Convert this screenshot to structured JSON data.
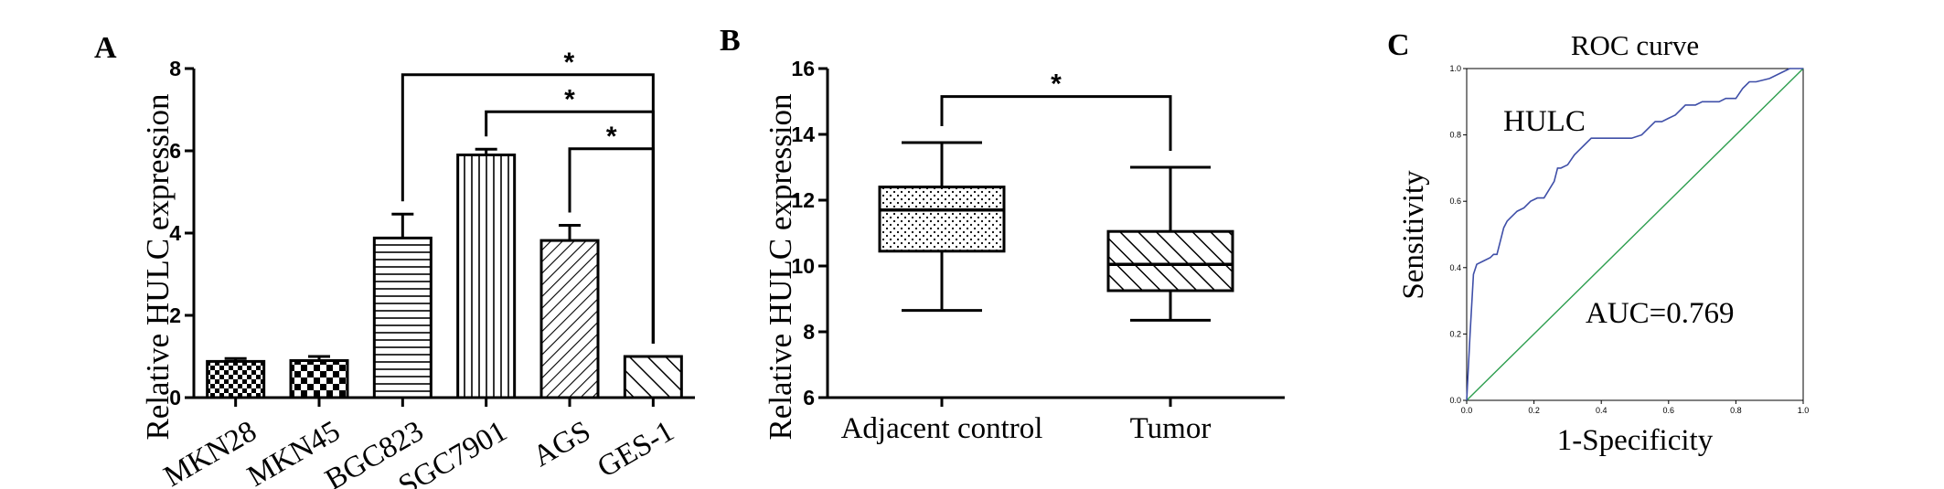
{
  "colors": {
    "ink": "#000000",
    "roc_curve": "#3f4fa8",
    "reference": "#2e9e4f",
    "background": "#ffffff"
  },
  "panels": {
    "A": {
      "letter": "A"
    },
    "B": {
      "letter": "B"
    },
    "C": {
      "letter": "C"
    }
  },
  "chart_data": [
    {
      "panel": "A",
      "type": "bar",
      "ylabel": "Relative HULC expression",
      "xlabel": "",
      "ylim": [
        0,
        8
      ],
      "yticks": [
        0,
        2,
        4,
        6,
        8
      ],
      "categories": [
        "MKN28",
        "MKN45",
        "BGC823",
        "SGC7901",
        "AGS",
        "GES-1"
      ],
      "values": [
        0.88,
        0.9,
        3.88,
        5.9,
        3.82,
        1.0
      ],
      "errors": [
        0.07,
        0.1,
        0.58,
        0.14,
        0.37,
        0.0
      ],
      "patterns": [
        "checker-small",
        "checker-large",
        "horizontal",
        "vertical",
        "diagonal-ne",
        "diagonal-nw"
      ],
      "significance": [
        {
          "from": "BGC823",
          "to": "GES-1",
          "label": "*"
        },
        {
          "from": "SGC7901",
          "to": "GES-1",
          "label": "*"
        },
        {
          "from": "AGS",
          "to": "GES-1",
          "label": "*"
        }
      ]
    },
    {
      "panel": "B",
      "type": "box",
      "ylabel": "Relative HULC expression",
      "xlabel": "",
      "ylim": [
        6,
        16
      ],
      "yticks": [
        6,
        8,
        10,
        12,
        14,
        16
      ],
      "categories": [
        "Adjacent control",
        "Tumor"
      ],
      "boxes": [
        {
          "name": "Adjacent control",
          "min": 8.65,
          "q1": 10.45,
          "median": 11.7,
          "q3": 12.4,
          "max": 13.75,
          "pattern": "dots"
        },
        {
          "name": "Tumor",
          "min": 8.35,
          "q1": 9.25,
          "median": 10.05,
          "q3": 11.05,
          "max": 13.0,
          "pattern": "diagonal-nw"
        }
      ],
      "significance": [
        {
          "from": "Adjacent control",
          "to": "Tumor",
          "label": "*"
        }
      ]
    },
    {
      "panel": "C",
      "type": "line",
      "title": "ROC curve",
      "xlabel": "1-Specificity",
      "ylabel": "Sensitivity",
      "xlim": [
        0,
        1
      ],
      "ylim": [
        0,
        1
      ],
      "xticks": [
        "0.0",
        "0.2",
        "0.4",
        "0.6",
        "0.8",
        "1.0"
      ],
      "yticks": [
        "0.0",
        "0.2",
        "0.4",
        "0.6",
        "0.8",
        "1.0"
      ],
      "series_label": "HULC",
      "annotation": "AUC=0.769",
      "series": [
        {
          "name": "HULC",
          "x": [
            0,
            0.01,
            0.02,
            0.03,
            0.05,
            0.07,
            0.08,
            0.09,
            0.1,
            0.11,
            0.12,
            0.13,
            0.15,
            0.17,
            0.19,
            0.21,
            0.23,
            0.26,
            0.27,
            0.28,
            0.3,
            0.32,
            0.33,
            0.35,
            0.37,
            0.4,
            0.43,
            0.46,
            0.49,
            0.52,
            0.54,
            0.56,
            0.58,
            0.6,
            0.62,
            0.65,
            0.68,
            0.7,
            0.72,
            0.75,
            0.77,
            0.8,
            0.82,
            0.84,
            0.86,
            0.9,
            0.94,
            0.96,
            1.0
          ],
          "y": [
            0,
            0.2,
            0.38,
            0.41,
            0.42,
            0.43,
            0.44,
            0.44,
            0.48,
            0.52,
            0.54,
            0.55,
            0.57,
            0.58,
            0.6,
            0.61,
            0.61,
            0.66,
            0.7,
            0.7,
            0.71,
            0.74,
            0.75,
            0.77,
            0.79,
            0.79,
            0.79,
            0.79,
            0.79,
            0.8,
            0.82,
            0.84,
            0.84,
            0.85,
            0.86,
            0.89,
            0.89,
            0.9,
            0.9,
            0.9,
            0.91,
            0.91,
            0.94,
            0.96,
            0.96,
            0.97,
            0.99,
            1.0,
            1.0
          ]
        },
        {
          "name": "reference",
          "x": [
            0,
            1
          ],
          "y": [
            0,
            1
          ]
        }
      ]
    }
  ]
}
